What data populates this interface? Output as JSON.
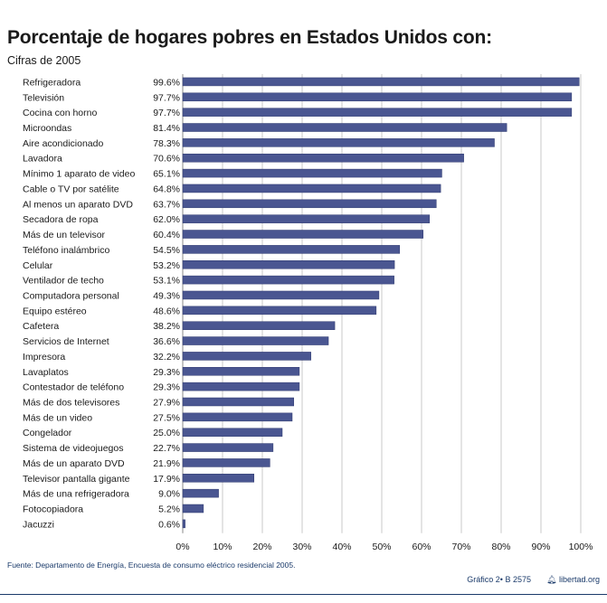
{
  "title": "Porcentaje de hogares pobres en Estados Unidos con:",
  "subtitle": "Cifras de 2005",
  "source": "Fuente: Departamento de Energía, Encuesta de consumo eléctrico residencial 2005.",
  "credit": "Gráfico 2• B 2575",
  "logo_text": "libertad.org",
  "colors": {
    "bar": "#4a5691",
    "bar_edge": "#2f3a70",
    "grid": "#c8c8c8",
    "text": "#1a1a1a"
  },
  "chart_data": {
    "type": "bar",
    "orientation": "horizontal",
    "title": "Porcentaje de hogares pobres en Estados Unidos con:",
    "subtitle": "Cifras de 2005",
    "xlim": [
      0,
      100
    ],
    "xticks": [
      "0%",
      "10%",
      "20%",
      "30%",
      "40%",
      "50%",
      "60%",
      "70%",
      "80%",
      "90%",
      "100%"
    ],
    "grid": "vertical",
    "categories": [
      "Refrigeradora",
      "Televisión",
      "Cocina con horno",
      "Microondas",
      "Aire acondicionado",
      "Lavadora",
      "Mínimo 1 aparato de video",
      "Cable o TV por satélite",
      "Al menos un aparato DVD",
      "Secadora de ropa",
      "Más de un televisor",
      "Teléfono inalámbrico",
      "Celular",
      "Ventilador de techo",
      "Computadora personal",
      "Equipo estéreo",
      "Cafetera",
      "Servicios de Internet",
      "Impresora",
      "Lavaplatos",
      "Contestador de teléfono",
      "Más de dos televisores",
      "Más de un video",
      "Congelador",
      "Sistema de videojuegos",
      "Más de un aparato DVD",
      "Televisor pantalla gigante",
      "Más de una refrigeradora",
      "Fotocopiadora",
      "Jacuzzi"
    ],
    "labels": [
      "99.6%",
      "97.7%",
      "97.7%",
      "81.4%",
      "78.3%",
      "70.6%",
      "65.1%",
      "64.8%",
      "63.7%",
      "62.0%",
      "60.4%",
      "54.5%",
      "53.2%",
      "53.1%",
      "49.3%",
      "48.6%",
      "38.2%",
      "36.6%",
      "32.2%",
      "29.3%",
      "29.3%",
      "27.9%",
      "27.5%",
      "25.0%",
      "22.7%",
      "21.9%",
      "17.9%",
      "9.0%",
      "5.2%",
      "0.6%"
    ],
    "values": [
      99.6,
      97.7,
      97.7,
      81.4,
      78.3,
      70.6,
      65.1,
      64.8,
      63.7,
      62.0,
      60.4,
      54.5,
      53.2,
      53.1,
      49.3,
      48.6,
      38.2,
      36.6,
      32.2,
      29.3,
      29.3,
      27.9,
      27.5,
      25.0,
      22.7,
      21.9,
      17.9,
      9.0,
      5.2,
      0.6
    ]
  }
}
